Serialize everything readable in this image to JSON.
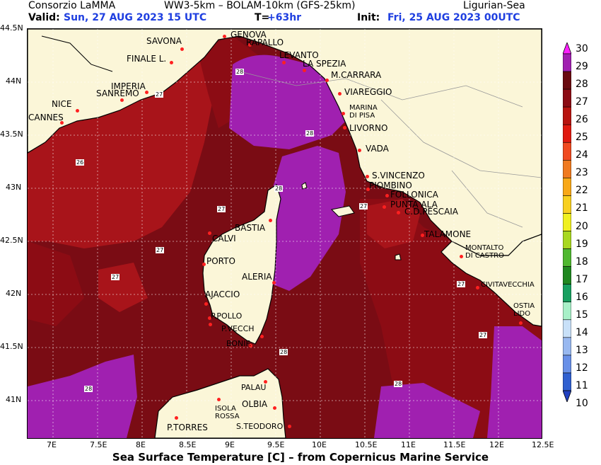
{
  "header": {
    "org": "Consorzio LaMMA",
    "model": "WW3-5km  –  BOLAM-10km (GFS-25km)",
    "region": "Ligurian-Sea",
    "valid_label": "Valid:",
    "valid_value": "Sun, 27 AUG 2023   15 UTC",
    "lead_label": "T=",
    "lead_value": "+63hr",
    "init_label": "Init:",
    "init_value": "Fri, 25 AUG 2023  00UTC"
  },
  "footer": "Sea Surface Temperature [C] – from Copernicus Marine Service",
  "axes": {
    "lat_labels": [
      "44.5N",
      "44N",
      "43.5N",
      "43N",
      "42.5N",
      "42N",
      "41.5N",
      "41N"
    ],
    "lon_labels": [
      "7E",
      "7.5E",
      "8E",
      "8.5E",
      "9E",
      "9.5E",
      "10E",
      "10.5E",
      "11E",
      "11.5E",
      "12E",
      "12.5E"
    ]
  },
  "colorbar": {
    "ticks": [
      "30",
      "29",
      "28",
      "27",
      "26",
      "25",
      "24",
      "23",
      "22",
      "21",
      "20",
      "19",
      "18",
      "17",
      "16",
      "15",
      "14",
      "13",
      "12",
      "11",
      "10"
    ],
    "colors": [
      "#ff20ff",
      "#a020b0",
      "#6a0a10",
      "#8c0c14",
      "#b81410",
      "#e01a10",
      "#f04a20",
      "#f07a20",
      "#f8a818",
      "#f8d020",
      "#f0f020",
      "#a8d820",
      "#50b830",
      "#208820",
      "#18a060",
      "#a8f0c8",
      "#c8e0f8",
      "#98b8f0",
      "#6890e8",
      "#3060d0",
      "#2040c0"
    ]
  },
  "colors": {
    "sea_27": "#7a0c14",
    "sea_26": "#a8141a",
    "sea_28": "#a020b0",
    "land": "#fbf6d8",
    "coast": "#000000",
    "city_dot": "#ff2020",
    "header_blue": "#1f3fe0"
  },
  "cities": [
    "GENOVA",
    "SAVONA",
    "RAPALLO",
    "FINALE L.",
    "LEVANTO",
    "LA SPEZIA",
    "M.CARRARA",
    "IMPERIA",
    "SANREMO",
    "VIAREGGIO",
    "NICE",
    "MARINA DI PISA",
    "CANNES",
    "LIVORNO",
    "VADA",
    "S.VINCENZO",
    "PIOMBINO",
    "FOLLONICA",
    "PUNTA ALA",
    "C.D.PESCAIA",
    "BASTIA",
    "TALAMONE",
    "CALVI",
    "MONTALTO DI CASTRO",
    "PORTO",
    "ALERIA",
    "CIVITAVECCHIA",
    "AJACCIO",
    "OSTIA LIDO",
    "P.POLLO",
    "P.VECCH",
    "BONIF.",
    "PALAU",
    "OLBIA",
    "ISOLA ROSSA",
    "P.TORRES",
    "S.TEODORO"
  ],
  "values": [
    "28",
    "27",
    "28",
    "26",
    "28",
    "27",
    "27",
    "27",
    "27",
    "28",
    "27",
    "27",
    "28",
    "28",
    "28"
  ]
}
